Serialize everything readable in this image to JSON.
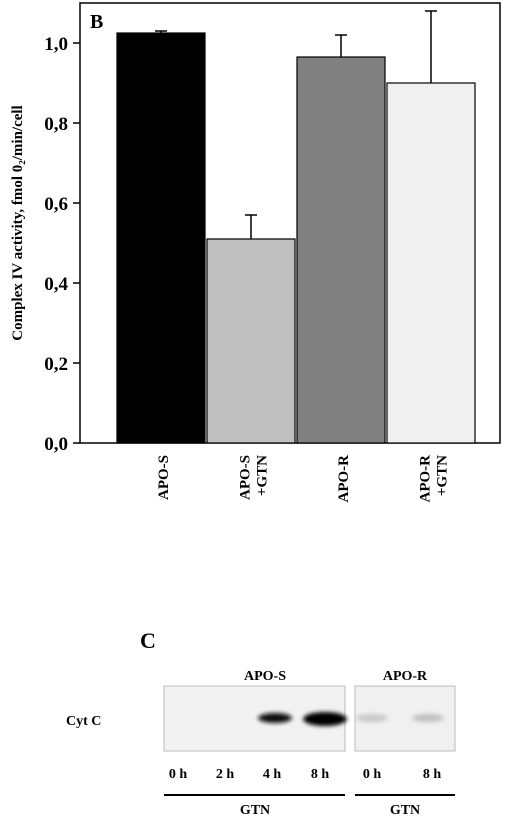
{
  "chart_data": {
    "type": "bar",
    "panel_label": "B",
    "y_label": "Complex IV activity, fmol 0₂/min/cell",
    "categories": [
      "APO-S",
      "APO-S\n+GTN",
      "APO-R",
      "APO-R\n+GTN"
    ],
    "values": [
      1.025,
      0.51,
      0.965,
      0.9
    ],
    "errors": [
      0.005,
      0.06,
      0.055,
      0.18
    ],
    "colors": [
      "#000000",
      "#c0c0c0",
      "#808080",
      "#f0f0f0"
    ],
    "ylim": [
      0,
      1.1
    ],
    "yticks": [
      {
        "value": 0,
        "label": "0,0"
      },
      {
        "value": 0.2,
        "label": "0,2"
      },
      {
        "value": 0.4,
        "label": "0,4"
      },
      {
        "value": 0.6,
        "label": "0,6"
      },
      {
        "value": 0.8,
        "label": "0,8"
      },
      {
        "value": 1.0,
        "label": "1,0"
      }
    ]
  },
  "blot": {
    "panel_label": "C",
    "row_label": "Cyt C",
    "groups": [
      {
        "name": "APO-S",
        "times": [
          "0 h",
          "2 h",
          "4 h",
          "8 h"
        ],
        "treatment": "GTN"
      },
      {
        "name": "APO-R",
        "times": [
          "0 h",
          "8 h"
        ],
        "treatment": "GTN"
      }
    ]
  }
}
